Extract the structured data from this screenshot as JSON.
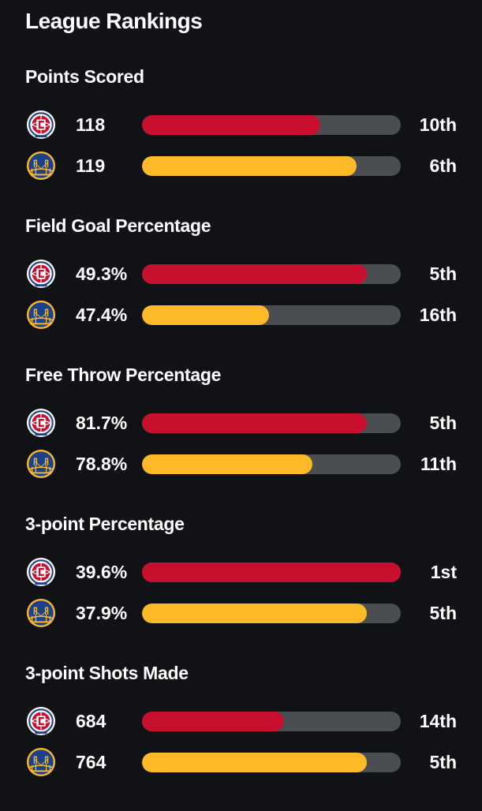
{
  "header": {
    "title": "League Rankings"
  },
  "teams": {
    "clippers": {
      "name": "Clippers",
      "logo_icon": "clippers-logo-icon",
      "bar_color": "#c8102e"
    },
    "warriors": {
      "name": "Warriors",
      "logo_icon": "warriors-logo-icon",
      "bar_color": "#fdb927"
    }
  },
  "colors": {
    "background": "#111215",
    "track": "#4a4d52"
  },
  "stats": [
    {
      "title": "Points Scored",
      "rows": [
        {
          "team": "clippers",
          "value": "118",
          "rank": "10th",
          "fill_fraction": 0.69
        },
        {
          "team": "warriors",
          "value": "119",
          "rank": "6th",
          "fill_fraction": 0.83
        }
      ]
    },
    {
      "title": "Field Goal Percentage",
      "rows": [
        {
          "team": "clippers",
          "value": "49.3%",
          "rank": "5th",
          "fill_fraction": 0.87
        },
        {
          "team": "warriors",
          "value": "47.4%",
          "rank": "16th",
          "fill_fraction": 0.49
        }
      ]
    },
    {
      "title": "Free Throw Percentage",
      "rows": [
        {
          "team": "clippers",
          "value": "81.7%",
          "rank": "5th",
          "fill_fraction": 0.87
        },
        {
          "team": "warriors",
          "value": "78.8%",
          "rank": "11th",
          "fill_fraction": 0.66
        }
      ]
    },
    {
      "title": "3-point Percentage",
      "rows": [
        {
          "team": "clippers",
          "value": "39.6%",
          "rank": "1st",
          "fill_fraction": 1.0
        },
        {
          "team": "warriors",
          "value": "37.9%",
          "rank": "5th",
          "fill_fraction": 0.87
        }
      ]
    },
    {
      "title": "3-point Shots Made",
      "rows": [
        {
          "team": "clippers",
          "value": "684",
          "rank": "14th",
          "fill_fraction": 0.55
        },
        {
          "team": "warriors",
          "value": "764",
          "rank": "5th",
          "fill_fraction": 0.87
        }
      ]
    }
  ]
}
